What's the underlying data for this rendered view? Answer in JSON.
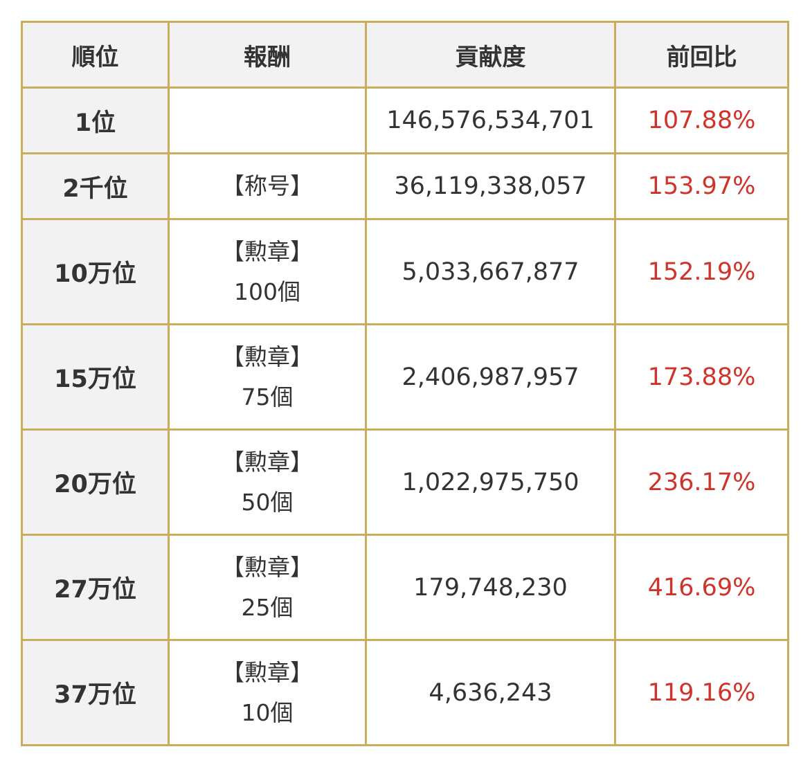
{
  "table": {
    "headers": [
      "順位",
      "報酬",
      "貢献度",
      "前回比"
    ],
    "rows": [
      {
        "rank": "1位",
        "reward_line1": "",
        "reward_line2": "",
        "contribution": "146,576,534,701",
        "ratio": "107.88%"
      },
      {
        "rank": "2千位",
        "reward_line1": "【称号】",
        "reward_line2": "",
        "contribution": "36,119,338,057",
        "ratio": "153.97%"
      },
      {
        "rank": "10万位",
        "reward_line1": "【勲章】",
        "reward_line2": "100個",
        "contribution": "5,033,667,877",
        "ratio": "152.19%"
      },
      {
        "rank": "15万位",
        "reward_line1": "【勲章】",
        "reward_line2": "75個",
        "contribution": "2,406,987,957",
        "ratio": "173.88%"
      },
      {
        "rank": "20万位",
        "reward_line1": "【勲章】",
        "reward_line2": "50個",
        "contribution": "1,022,975,750",
        "ratio": "236.17%"
      },
      {
        "rank": "27万位",
        "reward_line1": "【勲章】",
        "reward_line2": "25個",
        "contribution": "179,748,230",
        "ratio": "416.69%"
      },
      {
        "rank": "37万位",
        "reward_line1": "【勲章】",
        "reward_line2": "10個",
        "contribution": "4,636,243",
        "ratio": "119.16%"
      }
    ]
  },
  "colors": {
    "border": "#c9ad5c",
    "header_bg": "#f2f2f2",
    "text": "#333333",
    "ratio_text": "#d0332a"
  }
}
